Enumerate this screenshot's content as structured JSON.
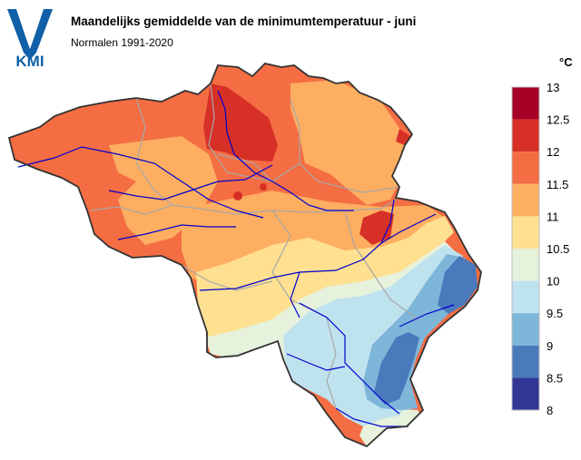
{
  "header": {
    "title": "Maandelijks gemiddelde van de minimumtemperatuur - juni",
    "subtitle": "Normalen 1991-2020",
    "logo_text": "KMI"
  },
  "legend": {
    "unit": "°C",
    "bins": [
      {
        "from": 12.5,
        "to": 13.0,
        "color": "#a50026"
      },
      {
        "from": 12.0,
        "to": 12.5,
        "color": "#d73027"
      },
      {
        "from": 11.5,
        "to": 12.0,
        "color": "#f46d43"
      },
      {
        "from": 11.0,
        "to": 11.5,
        "color": "#fdae61"
      },
      {
        "from": 10.5,
        "to": 11.0,
        "color": "#fee090"
      },
      {
        "from": 10.0,
        "to": 10.5,
        "color": "#e6f2dc"
      },
      {
        "from": 9.5,
        "to": 10.0,
        "color": "#bfe2ef"
      },
      {
        "from": 9.0,
        "to": 9.5,
        "color": "#7eb6d9"
      },
      {
        "from": 8.5,
        "to": 9.0,
        "color": "#4a7abb"
      },
      {
        "from": 8.0,
        "to": 8.5,
        "color": "#313695"
      }
    ],
    "ticks": [
      "13",
      "12.5",
      "12",
      "11.5",
      "11",
      "10.5",
      "10",
      "9.5",
      "9",
      "8.5",
      "8"
    ]
  },
  "map": {
    "colors": {
      "river": "#0000cc",
      "border": "#333333",
      "province": "#a8a8a8",
      "logo_blue": "#1060a8"
    }
  }
}
